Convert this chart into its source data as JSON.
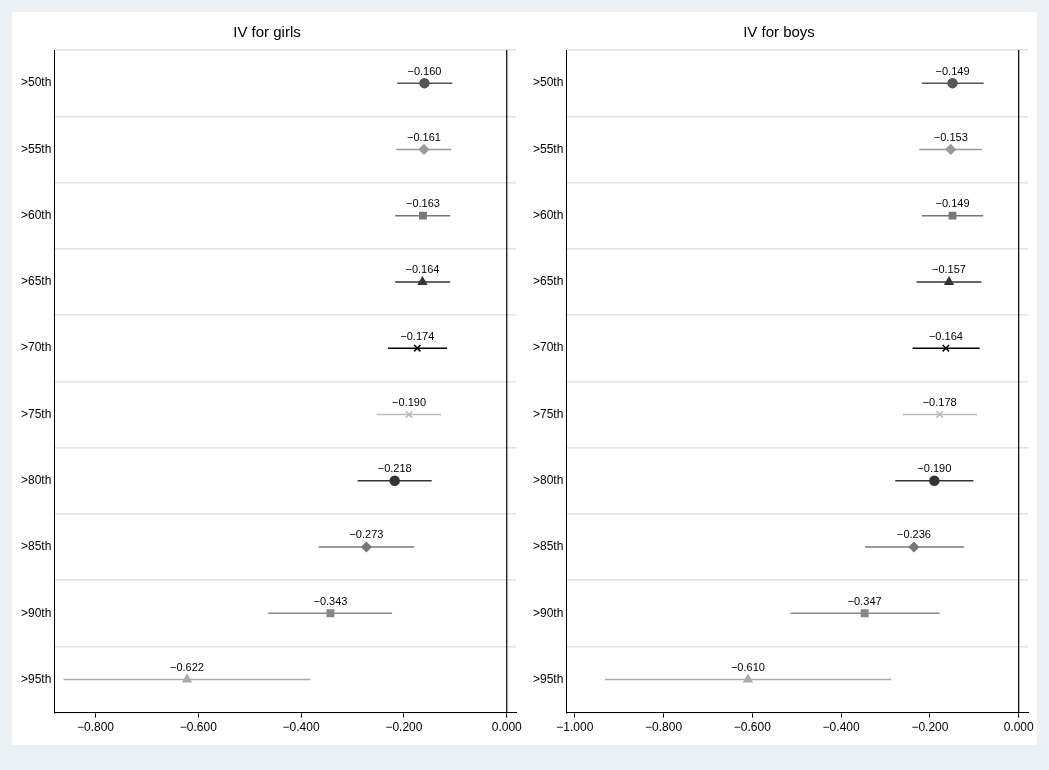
{
  "chart_data": [
    {
      "type": "scatter",
      "title": "IV for girls",
      "orientation": "horizontal",
      "grid": "y",
      "categories": [
        ">50th",
        ">55th",
        ">60th",
        ">65th",
        ">70th",
        ">75th",
        ">80th",
        ">85th",
        ">90th",
        ">95th"
      ],
      "xlim": [
        -0.88,
        0.018
      ],
      "xticks": [
        {
          "value": -0.8,
          "label": "−0.800"
        },
        {
          "value": -0.6,
          "label": "−0.600"
        },
        {
          "value": -0.4,
          "label": "−0.400"
        },
        {
          "value": -0.2,
          "label": "−0.200"
        },
        {
          "value": 0,
          "label": "0.000"
        }
      ],
      "ref_lines": [
        {
          "axis": "x",
          "value": 0,
          "color": "#000000"
        }
      ],
      "series": [
        {
          "color": "#555555",
          "marker": "circle",
          "values": [
            -0.16,
            null,
            null,
            null,
            null,
            null,
            null,
            null,
            null,
            null
          ],
          "errors": [
            [
              -0.213,
              -0.106
            ],
            null,
            null,
            null,
            null,
            null,
            null,
            null,
            null,
            null
          ],
          "value_labels": [
            "−0.160",
            null,
            null,
            null,
            null,
            null,
            null,
            null,
            null,
            null
          ]
        },
        {
          "color": "#999999",
          "marker": "diamond",
          "values": [
            null,
            -0.161,
            null,
            null,
            null,
            null,
            null,
            null,
            null,
            null
          ],
          "errors": [
            null,
            [
              -0.215,
              -0.108
            ],
            null,
            null,
            null,
            null,
            null,
            null,
            null,
            null
          ],
          "value_labels": [
            null,
            "−0.161",
            null,
            null,
            null,
            null,
            null,
            null,
            null,
            null
          ]
        },
        {
          "color": "#777777",
          "marker": "square",
          "values": [
            null,
            null,
            -0.163,
            null,
            null,
            null,
            null,
            null,
            null,
            null
          ],
          "errors": [
            null,
            null,
            [
              -0.217,
              -0.11
            ],
            null,
            null,
            null,
            null,
            null,
            null,
            null
          ],
          "value_labels": [
            null,
            null,
            "−0.163",
            null,
            null,
            null,
            null,
            null,
            null,
            null
          ]
        },
        {
          "color": "#333333",
          "marker": "triangle",
          "values": [
            null,
            null,
            null,
            -0.164,
            null,
            null,
            null,
            null,
            null,
            null
          ],
          "errors": [
            null,
            null,
            null,
            [
              -0.217,
              -0.11
            ],
            null,
            null,
            null,
            null,
            null,
            null
          ],
          "value_labels": [
            null,
            null,
            null,
            "−0.164",
            null,
            null,
            null,
            null,
            null,
            null
          ]
        },
        {
          "color": "#000000",
          "marker": "cross",
          "values": [
            null,
            null,
            null,
            null,
            -0.174,
            null,
            null,
            null,
            null,
            null
          ],
          "errors": [
            null,
            null,
            null,
            null,
            [
              -0.231,
              -0.116
            ],
            null,
            null,
            null,
            null,
            null
          ],
          "value_labels": [
            null,
            null,
            null,
            null,
            "−0.174",
            null,
            null,
            null,
            null,
            null
          ]
        },
        {
          "color": "#bbbbbb",
          "marker": "cross",
          "values": [
            null,
            null,
            null,
            null,
            null,
            -0.19,
            null,
            null,
            null,
            null
          ],
          "errors": [
            null,
            null,
            null,
            null,
            null,
            [
              -0.253,
              -0.128
            ],
            null,
            null,
            null,
            null
          ],
          "value_labels": [
            null,
            null,
            null,
            null,
            null,
            "−0.190",
            null,
            null,
            null,
            null
          ]
        },
        {
          "color": "#333333",
          "marker": "circle",
          "values": [
            null,
            null,
            null,
            null,
            null,
            null,
            -0.218,
            null,
            null,
            null
          ],
          "errors": [
            null,
            null,
            null,
            null,
            null,
            null,
            [
              -0.29,
              -0.146
            ],
            null,
            null,
            null
          ],
          "value_labels": [
            null,
            null,
            null,
            null,
            null,
            null,
            "−0.218",
            null,
            null,
            null
          ]
        },
        {
          "color": "#777777",
          "marker": "diamond",
          "values": [
            null,
            null,
            null,
            null,
            null,
            null,
            null,
            -0.273,
            null,
            null
          ],
          "errors": [
            null,
            null,
            null,
            null,
            null,
            null,
            null,
            [
              -0.366,
              -0.18
            ],
            null,
            null
          ],
          "value_labels": [
            null,
            null,
            null,
            null,
            null,
            null,
            null,
            "−0.273",
            null,
            null
          ]
        },
        {
          "color": "#888888",
          "marker": "square",
          "values": [
            null,
            null,
            null,
            null,
            null,
            null,
            null,
            null,
            -0.343,
            null
          ],
          "errors": [
            null,
            null,
            null,
            null,
            null,
            null,
            null,
            null,
            [
              -0.464,
              -0.223
            ],
            null
          ],
          "value_labels": [
            null,
            null,
            null,
            null,
            null,
            null,
            null,
            null,
            "−0.343",
            null
          ]
        },
        {
          "color": "#aaaaaa",
          "marker": "triangle",
          "values": [
            null,
            null,
            null,
            null,
            null,
            null,
            null,
            null,
            null,
            -0.622
          ],
          "errors": [
            null,
            null,
            null,
            null,
            null,
            null,
            null,
            null,
            null,
            [
              -0.862,
              -0.382
            ]
          ],
          "value_labels": [
            null,
            null,
            null,
            null,
            null,
            null,
            null,
            null,
            null,
            "−0.622"
          ]
        }
      ]
    },
    {
      "type": "scatter",
      "title": "IV for boys",
      "orientation": "horizontal",
      "grid": "y",
      "categories": [
        ">50th",
        ">55th",
        ">60th",
        ">65th",
        ">70th",
        ">75th",
        ">80th",
        ">85th",
        ">90th",
        ">95th"
      ],
      "xlim": [
        -1.019,
        0.021
      ],
      "xticks": [
        {
          "value": -1,
          "label": "−1.000"
        },
        {
          "value": -0.8,
          "label": "−0.800"
        },
        {
          "value": -0.6,
          "label": "−0.600"
        },
        {
          "value": -0.4,
          "label": "−0.400"
        },
        {
          "value": -0.2,
          "label": "−0.200"
        },
        {
          "value": 0,
          "label": "0.000"
        }
      ],
      "ref_lines": [
        {
          "axis": "x",
          "value": 0,
          "color": "#000000"
        }
      ],
      "series": [
        {
          "color": "#555555",
          "marker": "circle",
          "values": [
            -0.149,
            null,
            null,
            null,
            null,
            null,
            null,
            null,
            null,
            null
          ],
          "errors": [
            [
              -0.218,
              -0.079
            ],
            null,
            null,
            null,
            null,
            null,
            null,
            null,
            null,
            null
          ],
          "value_labels": [
            "−0.149",
            null,
            null,
            null,
            null,
            null,
            null,
            null,
            null,
            null
          ]
        },
        {
          "color": "#999999",
          "marker": "diamond",
          "values": [
            null,
            -0.153,
            null,
            null,
            null,
            null,
            null,
            null,
            null,
            null
          ],
          "errors": [
            null,
            [
              -0.224,
              -0.083
            ],
            null,
            null,
            null,
            null,
            null,
            null,
            null,
            null
          ],
          "value_labels": [
            null,
            "−0.153",
            null,
            null,
            null,
            null,
            null,
            null,
            null,
            null
          ]
        },
        {
          "color": "#777777",
          "marker": "square",
          "values": [
            null,
            null,
            -0.149,
            null,
            null,
            null,
            null,
            null,
            null,
            null
          ],
          "errors": [
            null,
            null,
            [
              -0.218,
              -0.08
            ],
            null,
            null,
            null,
            null,
            null,
            null,
            null
          ],
          "value_labels": [
            null,
            null,
            "−0.149",
            null,
            null,
            null,
            null,
            null,
            null,
            null
          ]
        },
        {
          "color": "#333333",
          "marker": "triangle",
          "values": [
            null,
            null,
            null,
            -0.157,
            null,
            null,
            null,
            null,
            null,
            null
          ],
          "errors": [
            null,
            null,
            null,
            [
              -0.23,
              -0.084
            ],
            null,
            null,
            null,
            null,
            null,
            null
          ],
          "value_labels": [
            null,
            null,
            null,
            "−0.157",
            null,
            null,
            null,
            null,
            null,
            null
          ]
        },
        {
          "color": "#000000",
          "marker": "cross",
          "values": [
            null,
            null,
            null,
            null,
            -0.164,
            null,
            null,
            null,
            null,
            null
          ],
          "errors": [
            null,
            null,
            null,
            null,
            [
              -0.239,
              -0.088
            ],
            null,
            null,
            null,
            null,
            null
          ],
          "value_labels": [
            null,
            null,
            null,
            null,
            "−0.164",
            null,
            null,
            null,
            null,
            null
          ]
        },
        {
          "color": "#bbbbbb",
          "marker": "cross",
          "values": [
            null,
            null,
            null,
            null,
            null,
            -0.178,
            null,
            null,
            null,
            null
          ],
          "errors": [
            null,
            null,
            null,
            null,
            null,
            [
              -0.261,
              -0.094
            ],
            null,
            null,
            null,
            null
          ],
          "value_labels": [
            null,
            null,
            null,
            null,
            null,
            "−0.178",
            null,
            null,
            null,
            null
          ]
        },
        {
          "color": "#333333",
          "marker": "circle",
          "values": [
            null,
            null,
            null,
            null,
            null,
            null,
            -0.19,
            null,
            null,
            null
          ],
          "errors": [
            null,
            null,
            null,
            null,
            null,
            null,
            [
              -0.278,
              -0.102
            ],
            null,
            null,
            null
          ],
          "value_labels": [
            null,
            null,
            null,
            null,
            null,
            null,
            "−0.190",
            null,
            null,
            null
          ]
        },
        {
          "color": "#777777",
          "marker": "diamond",
          "values": [
            null,
            null,
            null,
            null,
            null,
            null,
            null,
            -0.236,
            null,
            null
          ],
          "errors": [
            null,
            null,
            null,
            null,
            null,
            null,
            null,
            [
              -0.346,
              -0.123
            ],
            null,
            null
          ],
          "value_labels": [
            null,
            null,
            null,
            null,
            null,
            null,
            null,
            "−0.236",
            null,
            null
          ]
        },
        {
          "color": "#888888",
          "marker": "square",
          "values": [
            null,
            null,
            null,
            null,
            null,
            null,
            null,
            null,
            -0.347,
            null
          ],
          "errors": [
            null,
            null,
            null,
            null,
            null,
            null,
            null,
            null,
            [
              -0.514,
              -0.178
            ],
            null
          ],
          "value_labels": [
            null,
            null,
            null,
            null,
            null,
            null,
            null,
            null,
            "−0.347",
            null
          ]
        },
        {
          "color": "#aaaaaa",
          "marker": "triangle",
          "values": [
            null,
            null,
            null,
            null,
            null,
            null,
            null,
            null,
            null,
            -0.61
          ],
          "errors": [
            null,
            null,
            null,
            null,
            null,
            null,
            null,
            null,
            null,
            [
              -0.932,
              -0.287
            ]
          ],
          "value_labels": [
            null,
            null,
            null,
            null,
            null,
            null,
            null,
            null,
            null,
            "−0.610"
          ]
        }
      ]
    }
  ]
}
